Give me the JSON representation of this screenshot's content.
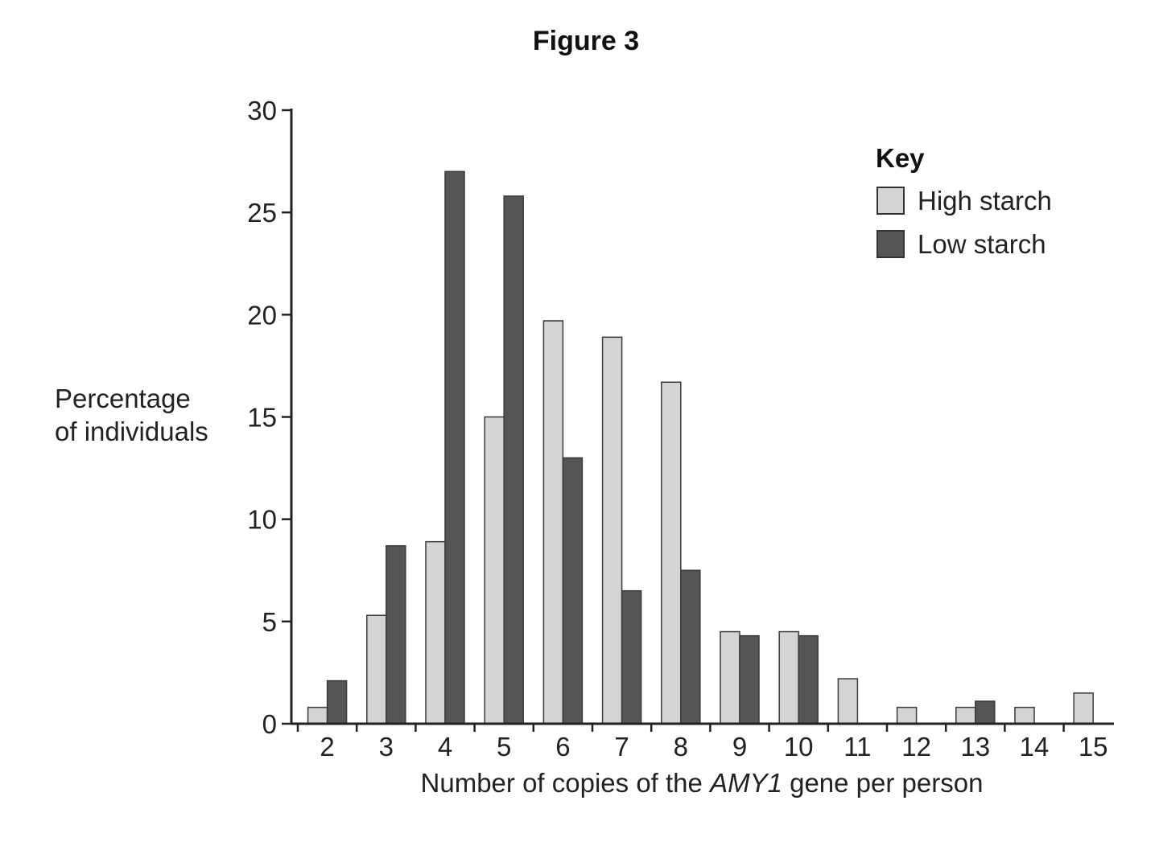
{
  "figure_title": "Figure 3",
  "chart_data": {
    "type": "bar",
    "title": "Figure 3",
    "xlabel_parts": [
      "Number of copies of the ",
      "AMY1",
      " gene per person"
    ],
    "ylabel_lines": [
      "Percentage",
      "of individuals"
    ],
    "categories": [
      "2",
      "3",
      "4",
      "5",
      "6",
      "7",
      "8",
      "9",
      "10",
      "11",
      "12",
      "13",
      "14",
      "15"
    ],
    "series": [
      {
        "name": "High starch",
        "color": "#d4d4d4",
        "values": [
          0.8,
          5.3,
          8.9,
          15.0,
          19.7,
          18.9,
          16.7,
          4.5,
          4.5,
          2.2,
          0.8,
          0.8,
          0.8,
          1.5
        ]
      },
      {
        "name": "Low starch",
        "color": "#555555",
        "values": [
          2.1,
          8.7,
          27.0,
          25.8,
          13.0,
          6.5,
          7.5,
          4.3,
          4.3,
          0,
          0,
          1.1,
          0,
          0
        ]
      }
    ],
    "ylim": [
      0,
      30
    ],
    "yticks": [
      0,
      5,
      10,
      15,
      20,
      25,
      30
    ],
    "grid": false,
    "legend": {
      "title": "Key",
      "placement": "top-right"
    }
  }
}
